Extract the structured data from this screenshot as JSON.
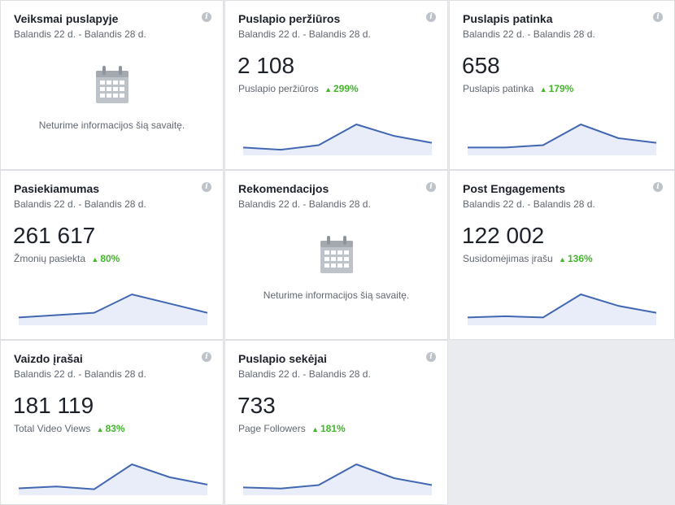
{
  "colors": {
    "accent": "#4267b2",
    "positive": "#42b72a",
    "fill": "#e9edf9"
  },
  "cards": [
    {
      "title": "Veiksmai puslapyje",
      "range": "Balandis 22 d. - Balandis 28 d.",
      "empty": "Neturime informacijos šią savaitę."
    },
    {
      "title": "Puslapio peržiūros",
      "range": "Balandis 22 d. - Balandis 28 d.",
      "value": "2 108",
      "metric": "Puslapio peržiūros",
      "delta": "299%",
      "trend": [
        2,
        1,
        3,
        12,
        7,
        4
      ]
    },
    {
      "title": "Puslapis patinka",
      "range": "Balandis 22 d. - Balandis 28 d.",
      "value": "658",
      "metric": "Puslapis patinka",
      "delta": "179%",
      "trend": [
        2,
        2,
        3,
        12,
        6,
        4
      ]
    },
    {
      "title": "Pasiekiamumas",
      "range": "Balandis 22 d. - Balandis 28 d.",
      "value": "261 617",
      "metric": "Žmonių pasiekta",
      "delta": "80%",
      "trend": [
        2,
        3,
        4,
        12,
        8,
        4
      ]
    },
    {
      "title": "Rekomendacijos",
      "range": "Balandis 22 d. - Balandis 28 d.",
      "empty": "Neturime informacijos šią savaitę."
    },
    {
      "title": "Post Engagements",
      "range": "Balandis 22 d. - Balandis 28 d.",
      "value": "122 002",
      "metric": "Susidomėjimas įrašu",
      "delta": "136%",
      "trend": [
        2,
        2.5,
        2,
        12,
        7,
        4
      ]
    },
    {
      "title": "Vaizdo įrašai",
      "range": "Balandis 22 d. - Balandis 28 d.",
      "value": "181 119",
      "metric": "Total Video Views",
      "delta": "83%",
      "trend": [
        2,
        3,
        1.5,
        15,
        8,
        4
      ]
    },
    {
      "title": "Puslapio sekėjai",
      "range": "Balandis 22 d. - Balandis 28 d.",
      "value": "733",
      "metric": "Page Followers",
      "delta": "181%",
      "trend": [
        2,
        1.5,
        3,
        12,
        6,
        3
      ]
    }
  ]
}
